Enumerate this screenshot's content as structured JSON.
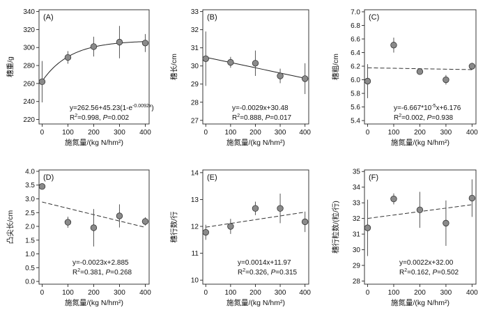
{
  "chart_data": [
    {
      "panel": "(A)",
      "type": "scatter",
      "fit": "exponential-solid",
      "x": [
        0,
        100,
        200,
        300,
        400
      ],
      "y": [
        262,
        289,
        301,
        306,
        305
      ],
      "err": [
        23,
        7,
        11,
        18,
        10
      ],
      "xlim": [
        -12,
        415
      ],
      "ylim": [
        215,
        342
      ],
      "xticks": [
        0,
        100,
        200,
        300,
        400
      ],
      "yticks": [
        220,
        240,
        260,
        280,
        300,
        320,
        340
      ],
      "fit_params": {
        "a": 262.56,
        "b": 45.23,
        "k": 0.0092
      },
      "ylabel": "穗重/g",
      "xlabel": "施氮量/(kg N/hm²)",
      "eq_main": "y=262.56+45.23(1-e",
      "eq_sup": "-0.0092x",
      "eq_tail": ")",
      "r2_text": "=0.998, ",
      "p_text": "=0.002"
    },
    {
      "panel": "(B)",
      "type": "scatter",
      "fit": "linear-solid",
      "x": [
        0,
        100,
        200,
        300,
        400
      ],
      "y": [
        30.4,
        30.2,
        30.15,
        29.45,
        29.3
      ],
      "err": [
        1.5,
        0.3,
        0.7,
        0.4,
        0.85
      ],
      "xlim": [
        -12,
        415
      ],
      "ylim": [
        26.8,
        33.1
      ],
      "xticks": [
        0,
        100,
        200,
        300,
        400
      ],
      "yticks": [
        27,
        28,
        29,
        30,
        31,
        32,
        33
      ],
      "fit_params": {
        "slope": -0.0029,
        "intercept": 30.48
      },
      "ylabel": "穗长/cm",
      "xlabel": "施氮量/(kg N/hm²)",
      "eq_main": "y=-0.0029x+30.48",
      "eq_sup": "",
      "eq_tail": "",
      "r2_text": "=0.888, ",
      "p_text": "=0.017"
    },
    {
      "panel": "(C)",
      "type": "scatter",
      "fit": "linear-dashed",
      "x": [
        0,
        100,
        200,
        300,
        400
      ],
      "y": [
        5.98,
        6.51,
        6.12,
        6.0,
        6.2
      ],
      "err": [
        0.25,
        0.11,
        0.04,
        0.07,
        0.05
      ],
      "xlim": [
        -12,
        415
      ],
      "ylim": [
        5.35,
        7.03
      ],
      "xticks": [
        0,
        100,
        200,
        300,
        400
      ],
      "yticks": [
        5.4,
        5.6,
        5.8,
        6.0,
        6.2,
        6.4,
        6.6,
        6.8,
        7.0
      ],
      "fit_params": {
        "slope": -6.667e-05,
        "intercept": 6.176
      },
      "ylabel": "穗粗/cm",
      "xlabel": "施氮量/(kg N/hm²)",
      "eq_main": "y=-6.667*10",
      "eq_sup": "-5",
      "eq_tail": "x+6.176",
      "r2_text": "=0.002, ",
      "p_text": "=0.938"
    },
    {
      "panel": "(D)",
      "type": "scatter",
      "fit": "linear-dashed",
      "x": [
        0,
        100,
        200,
        300,
        400
      ],
      "y": [
        3.45,
        2.15,
        1.95,
        2.38,
        2.18
      ],
      "err": [
        0.1,
        0.2,
        0.68,
        0.42,
        0.15
      ],
      "xlim": [
        -12,
        415
      ],
      "ylim": [
        -0.1,
        4.05
      ],
      "xticks": [
        0,
        100,
        200,
        300,
        400
      ],
      "yticks": [
        0.0,
        0.5,
        1.0,
        1.5,
        2.0,
        2.5,
        3.0,
        3.5,
        4.0
      ],
      "fit_params": {
        "slope": -0.0023,
        "intercept": 2.885
      },
      "ylabel": "凸尖长/cm",
      "xlabel": "施氮量/(kg N/hm²)",
      "eq_main": "y=-0.0023x+2.885",
      "eq_sup": "",
      "eq_tail": "",
      "r2_text": "=0.381, ",
      "p_text": "=0.268"
    },
    {
      "panel": "(E)",
      "type": "scatter",
      "fit": "linear-dashed",
      "x": [
        0,
        100,
        200,
        300,
        400
      ],
      "y": [
        11.78,
        12.0,
        12.67,
        12.67,
        12.17
      ],
      "err": [
        0.28,
        0.28,
        0.25,
        0.55,
        0.38
      ],
      "xlim": [
        -12,
        415
      ],
      "ylim": [
        9.85,
        14.1
      ],
      "xticks": [
        0,
        100,
        200,
        300,
        400
      ],
      "yticks": [
        10,
        11,
        12,
        13,
        14
      ],
      "fit_params": {
        "slope": 0.0014,
        "intercept": 11.97
      },
      "ylabel": "穗行数/行",
      "xlabel": "施氮量/(kg N/hm²)",
      "eq_main": "y=0.0014x+11.97",
      "eq_sup": "",
      "eq_tail": "",
      "r2_text": "=0.326, ",
      "p_text": "=0.315"
    },
    {
      "panel": "(F)",
      "type": "scatter",
      "fit": "linear-dashed",
      "x": [
        0,
        100,
        200,
        300,
        400
      ],
      "y": [
        31.4,
        33.25,
        32.55,
        31.7,
        33.3
      ],
      "err": [
        1.8,
        0.35,
        1.15,
        1.45,
        1.2
      ],
      "xlim": [
        -12,
        415
      ],
      "ylim": [
        27.8,
        35.1
      ],
      "xticks": [
        0,
        100,
        200,
        300,
        400
      ],
      "yticks": [
        28,
        29,
        30,
        31,
        32,
        33,
        34,
        35
      ],
      "fit_params": {
        "slope": 0.0022,
        "intercept": 32.0
      },
      "ylabel": "穗行粒数/(粒/行)",
      "xlabel": "施氮量/(kg N/hm²)",
      "eq_main": "y=0.0022x+32.00",
      "eq_sup": "",
      "eq_tail": "",
      "r2_text": "=0.162, ",
      "p_text": "=0.502"
    }
  ]
}
